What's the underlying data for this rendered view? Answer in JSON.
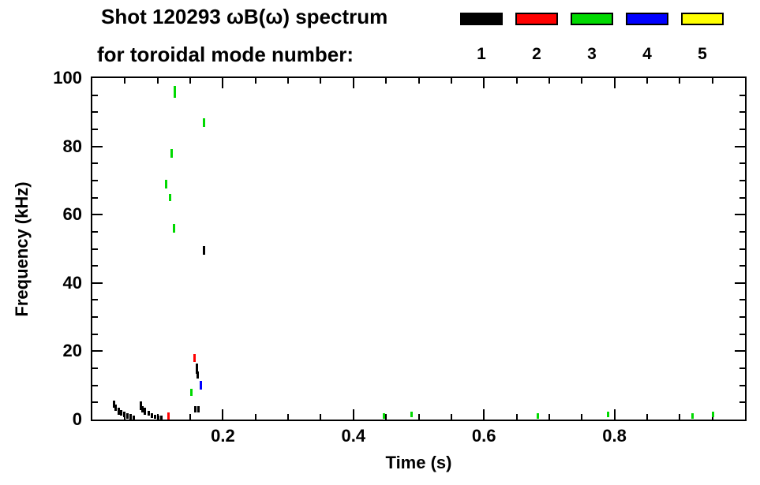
{
  "header": {
    "title": "Shot 120293 ωB(ω) spectrum",
    "subtitle": "for toroidal mode number:"
  },
  "legend": {
    "modes": [
      {
        "label": "1",
        "color": "#000000"
      },
      {
        "label": "2",
        "color": "#ff0000"
      },
      {
        "label": "3",
        "color": "#00d900"
      },
      {
        "label": "4",
        "color": "#0000ff"
      },
      {
        "label": "5",
        "color": "#ffff00"
      }
    ]
  },
  "chart_data": {
    "type": "scatter",
    "title": "Shot 120293 ωB(ω) spectrum for toroidal mode number: 1 2 3 4 5",
    "xlabel": "Time (s)",
    "ylabel": "Frequency (kHz)",
    "xlim": [
      0,
      1.0
    ],
    "ylim": [
      0,
      100
    ],
    "xticks": [
      0.2,
      0.4,
      0.6,
      0.8
    ],
    "xminor_step": 0.05,
    "yticks": [
      0,
      20,
      40,
      60,
      80,
      100
    ],
    "yminor_step": 5,
    "grid": false,
    "legend_position": "top-right",
    "series": [
      {
        "name": "n=1",
        "color": "#000000",
        "points": [
          [
            0.033,
            4.5,
            2.0
          ],
          [
            0.036,
            3.5,
            2.0
          ],
          [
            0.04,
            2.5,
            2.0
          ],
          [
            0.044,
            2.0,
            1.5
          ],
          [
            0.049,
            1.5,
            1.5
          ],
          [
            0.054,
            1.0,
            1.5
          ],
          [
            0.059,
            0.8,
            1.5
          ],
          [
            0.064,
            0.6,
            1.2
          ],
          [
            0.074,
            4.0,
            2.5
          ],
          [
            0.077,
            3.0,
            2.0
          ],
          [
            0.081,
            2.5,
            2.0
          ],
          [
            0.086,
            1.8,
            1.5
          ],
          [
            0.091,
            1.2,
            1.5
          ],
          [
            0.096,
            0.8,
            1.2
          ],
          [
            0.101,
            0.6,
            1.2
          ],
          [
            0.106,
            0.5,
            1.2
          ],
          [
            0.158,
            3.0,
            2.0
          ],
          [
            0.163,
            3.0,
            2.0
          ],
          [
            0.16,
            15.0,
            3.0
          ],
          [
            0.162,
            13.0,
            2.0
          ],
          [
            0.171,
            49.5,
            2.5
          ]
        ]
      },
      {
        "name": "n=2",
        "color": "#ff0000",
        "points": [
          [
            0.117,
            1.0,
            2.0
          ],
          [
            0.157,
            18.0,
            2.5
          ]
        ]
      },
      {
        "name": "n=3",
        "color": "#00d900",
        "points": [
          [
            0.126,
            96.0,
            3.5
          ],
          [
            0.171,
            87.0,
            2.5
          ],
          [
            0.121,
            78.0,
            2.5
          ],
          [
            0.113,
            69.0,
            2.5
          ],
          [
            0.119,
            65.0,
            2.0
          ],
          [
            0.125,
            56.0,
            2.5
          ],
          [
            0.152,
            8.0,
            2.0
          ],
          [
            0.447,
            1.0,
            1.5
          ],
          [
            0.489,
            1.5,
            1.5
          ],
          [
            0.683,
            1.0,
            1.5
          ],
          [
            0.79,
            1.5,
            1.5
          ],
          [
            0.92,
            1.0,
            1.5
          ],
          [
            0.951,
            1.5,
            1.5
          ]
        ]
      },
      {
        "name": "n=4",
        "color": "#0000ff",
        "points": [
          [
            0.166,
            10.0,
            2.5
          ]
        ]
      },
      {
        "name": "n=5",
        "color": "#ffff00",
        "points": []
      }
    ]
  }
}
